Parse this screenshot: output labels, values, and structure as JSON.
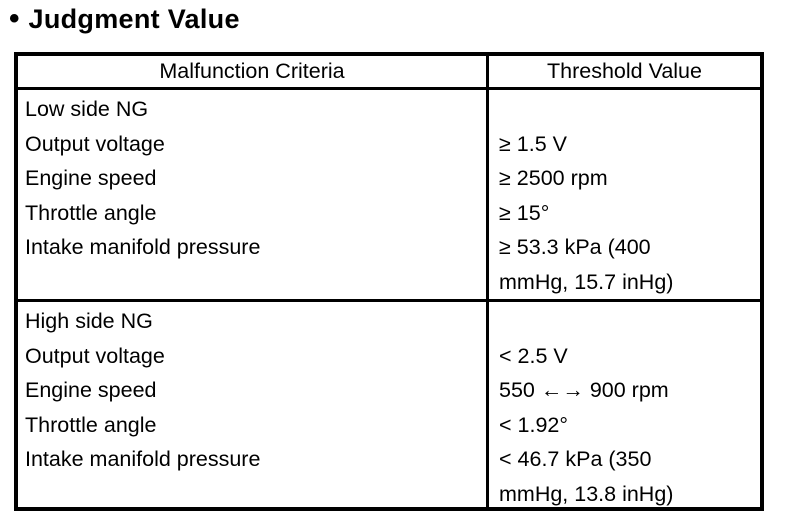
{
  "title": {
    "bullet": "•",
    "text": "Judgment Value"
  },
  "table": {
    "headers": [
      "Malfunction Criteria",
      "Threshold Value"
    ],
    "sections": [
      {
        "rows": [
          {
            "criteria": "Low side NG",
            "threshold": ""
          },
          {
            "criteria": "Output voltage",
            "threshold": "≥ 1.5 V"
          },
          {
            "criteria": "Engine speed",
            "threshold": "≥ 2500 rpm"
          },
          {
            "criteria": "Throttle angle",
            "threshold": "≥ 15°"
          },
          {
            "criteria": "Intake manifold pressure",
            "threshold": "≥ 53.3 kPa (400\nmmHg, 15.7 inHg)"
          }
        ]
      },
      {
        "rows": [
          {
            "criteria": "High side NG",
            "threshold": ""
          },
          {
            "criteria": "Output voltage",
            "threshold": "< 2.5 V"
          },
          {
            "criteria": "Engine speed",
            "threshold": "550 ←→ 900 rpm"
          },
          {
            "criteria": "Throttle angle",
            "threshold": "< 1.92°"
          },
          {
            "criteria": "Intake manifold pressure",
            "threshold": "< 46.7 kPa (350\nmmHg, 13.8 inHg)"
          }
        ]
      }
    ]
  },
  "colors": {
    "text": "#000000",
    "background": "#ffffff",
    "border": "#000000"
  }
}
